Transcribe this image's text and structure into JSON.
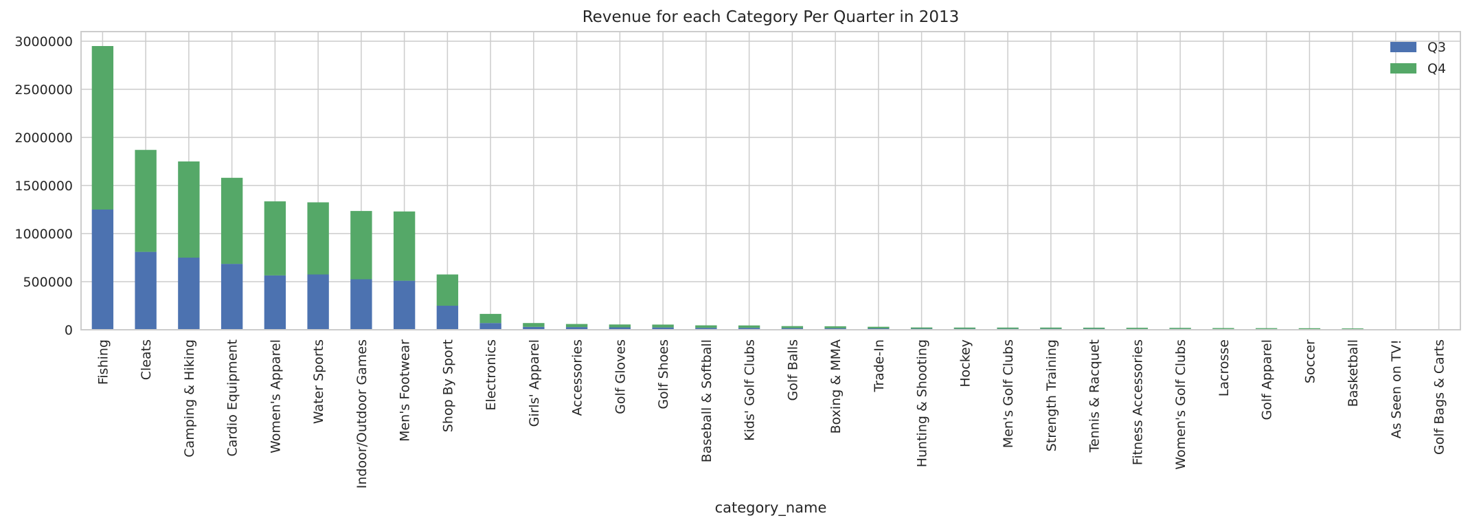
{
  "chart_data": {
    "type": "bar",
    "stacked": true,
    "title": "Revenue for each Category Per Quarter in 2013",
    "xlabel": "category_name",
    "ylabel": "",
    "ylim": [
      0,
      3100000
    ],
    "yticks": [
      0,
      500000,
      1000000,
      1500000,
      2000000,
      2500000,
      3000000
    ],
    "ytick_labels": [
      "0",
      "500000",
      "1000000",
      "1500000",
      "2000000",
      "2500000",
      "3000000"
    ],
    "grid": true,
    "legend_position": "top-right",
    "categories": [
      "Fishing",
      "Cleats",
      "Camping & Hiking",
      "Cardio Equipment",
      "Women's Apparel",
      "Water Sports",
      "Indoor/Outdoor Games",
      "Men's Footwear",
      "Shop By Sport",
      "Electronics",
      "Girls' Apparel",
      "Accessories",
      "Golf Gloves",
      "Golf Shoes",
      "Baseball & Softball",
      "Kids' Golf Clubs",
      "Golf Balls",
      "Boxing & MMA",
      "Trade-In",
      "Hunting & Shooting",
      "Hockey",
      "Men's Golf Clubs",
      "Strength Training",
      "Tennis & Racquet",
      "Fitness Accessories",
      "Women's Golf Clubs",
      "Lacrosse",
      "Golf Apparel",
      "Soccer",
      "Basketball",
      "As Seen on  TV!",
      "Golf Bags & Carts"
    ],
    "series": [
      {
        "name": "Q3",
        "color": "#4c72b0",
        "values": [
          1250000,
          810000,
          750000,
          685000,
          565000,
          575000,
          525000,
          510000,
          250000,
          70000,
          30000,
          28000,
          25000,
          24000,
          20000,
          20000,
          17000,
          16000,
          14000,
          11000,
          10000,
          10000,
          10000,
          10000,
          9000,
          9000,
          8000,
          8000,
          7000,
          6000,
          1500,
          800
        ]
      },
      {
        "name": "Q4",
        "color": "#55a868",
        "values": [
          1700000,
          1060000,
          1000000,
          895000,
          770000,
          750000,
          710000,
          720000,
          325000,
          95000,
          40000,
          32000,
          30000,
          30000,
          26000,
          25000,
          21000,
          20000,
          17000,
          13000,
          13000,
          13000,
          13000,
          12000,
          12000,
          11000,
          10000,
          9000,
          9000,
          8000,
          2000,
          1000
        ]
      }
    ]
  }
}
